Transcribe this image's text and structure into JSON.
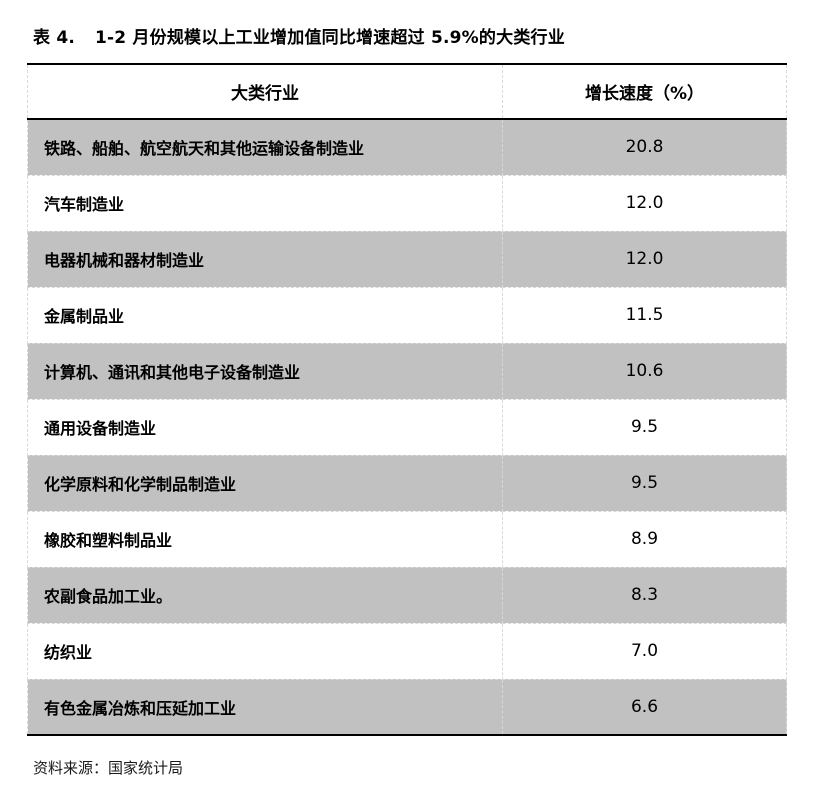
{
  "title": {
    "prefix": "表 4.",
    "text": "1-2 月份规模以上工业增加值同比增速超过 5.9%的大类行业"
  },
  "table": {
    "columns": [
      "大类行业",
      "增长速度（%）"
    ],
    "rows": [
      {
        "industry": "铁路、船舶、航空航天和其他运输设备制造业",
        "growth": "20.8"
      },
      {
        "industry": "汽车制造业",
        "growth": "12.0"
      },
      {
        "industry": "电器机械和器材制造业",
        "growth": "12.0"
      },
      {
        "industry": "金属制品业",
        "growth": "11.5"
      },
      {
        "industry": "计算机、通讯和其他电子设备制造业",
        "growth": "10.6"
      },
      {
        "industry": "通用设备制造业",
        "growth": "9.5"
      },
      {
        "industry": "化学原料和化学制品制造业",
        "growth": "9.5"
      },
      {
        "industry": "橡胶和塑料制品业",
        "growth": "8.9"
      },
      {
        "industry": "农副食品加工业。",
        "growth": "8.3"
      },
      {
        "industry": "纺织业",
        "growth": "7.0"
      },
      {
        "industry": "有色金属冶炼和压延加工业",
        "growth": "6.6"
      }
    ]
  },
  "footer": {
    "source_label": "资料来源：国家统计局"
  },
  "colors": {
    "row_shade": "#c1c1c1",
    "rule_dark": "#000000",
    "rule_light": "#d9d9d9",
    "text": "#000000"
  }
}
